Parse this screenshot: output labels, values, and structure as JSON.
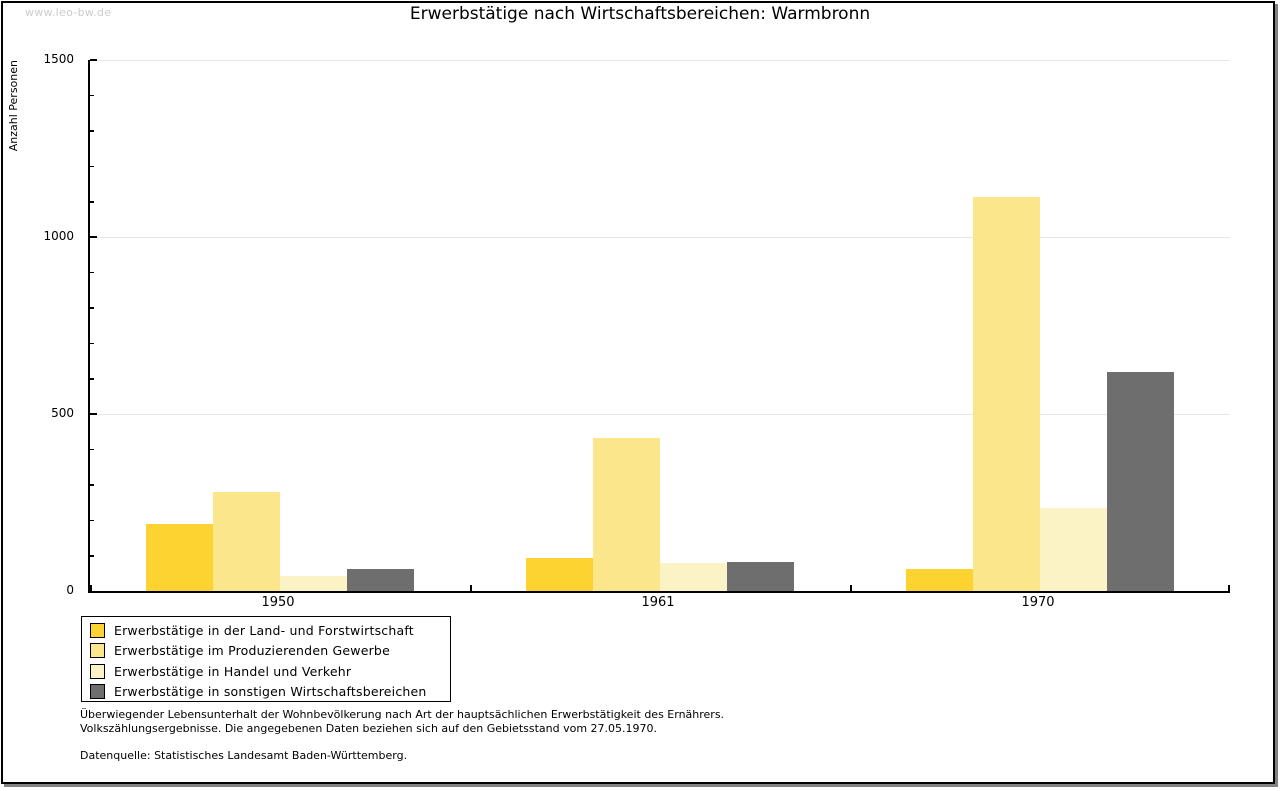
{
  "watermark": "www.leo-bw.de",
  "title": "Erwerbstätige nach Wirtschaftsbereichen: Warmbronn",
  "chart_data": {
    "type": "bar",
    "title": "Erwerbstätige nach Wirtschaftsbereichen: Warmbronn",
    "xlabel": "",
    "ylabel": "Anzahl Personen",
    "ylim": [
      0,
      1500
    ],
    "y_major_ticks": [
      0,
      500,
      1000,
      1500
    ],
    "y_minor_step": 100,
    "grid": "horizontal lines at major ticks (light gray)",
    "legend_position": "below plot, bottom-left, boxed",
    "categories": [
      "1950",
      "1961",
      "1970"
    ],
    "series": [
      {
        "name": "Erwerbstätige in der Land- und Forstwirtschaft",
        "color": "#FCD330",
        "values": [
          190,
          92,
          61
        ]
      },
      {
        "name": "Erwerbstätige im Produzierenden Gewerbe",
        "color": "#FCE68C",
        "values": [
          280,
          433,
          1112
        ]
      },
      {
        "name": "Erwerbstätige in Handel und Verkehr",
        "color": "#FBF3C6",
        "values": [
          42,
          80,
          234
        ]
      },
      {
        "name": "Erwerbstätige in sonstigen Wirtschaftsbereichen",
        "color": "#6E6E6E",
        "values": [
          63,
          83,
          618
        ]
      }
    ]
  },
  "footnotes": {
    "line1": "Überwiegender Lebensunterhalt der Wohnbevölkerung nach Art der hauptsächlichen Erwerbstätigkeit des Ernährers.",
    "line2": "Volkszählungsergebnisse. Die angegebenen Daten beziehen sich auf den Gebietsstand vom 27.05.1970.",
    "source": "Datenquelle: Statistisches Landesamt Baden-Württemberg."
  },
  "colors": {
    "axis": "#000000",
    "grid": "#E7E7E7",
    "watermark": "#CCCCCC",
    "frame_shadow": "#828282"
  }
}
